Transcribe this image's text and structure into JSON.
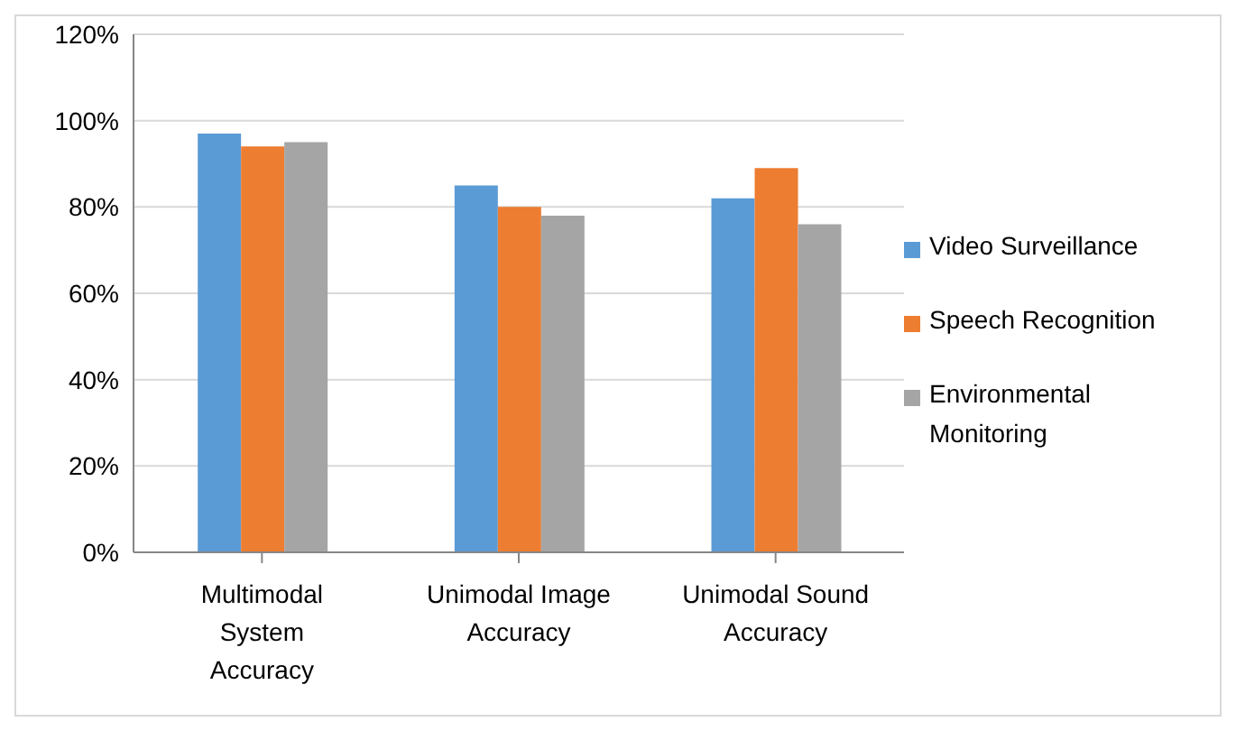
{
  "chart_data": {
    "type": "bar",
    "categories": [
      "Multimodal System Accuracy",
      "Unimodal Image Accuracy",
      "Unimodal Sound Accuracy"
    ],
    "series": [
      {
        "name": "Video Surveillance",
        "color": "#5b9bd5",
        "values": [
          97,
          85,
          82
        ]
      },
      {
        "name": "Speech Recognition",
        "color": "#ed7d31",
        "values": [
          94,
          80,
          89
        ]
      },
      {
        "name": "Environmental Monitoring",
        "color": "#a5a5a5",
        "values": [
          95,
          78,
          76
        ]
      }
    ],
    "ylim": [
      0,
      120
    ],
    "yticks": [
      {
        "value": 0,
        "label": "0%"
      },
      {
        "value": 20,
        "label": "20%"
      },
      {
        "value": 40,
        "label": "40%"
      },
      {
        "value": 60,
        "label": "60%"
      },
      {
        "value": 80,
        "label": "80%"
      },
      {
        "value": 100,
        "label": "100%"
      },
      {
        "value": 120,
        "label": "120%"
      }
    ],
    "grid": "y",
    "legend": "right"
  }
}
